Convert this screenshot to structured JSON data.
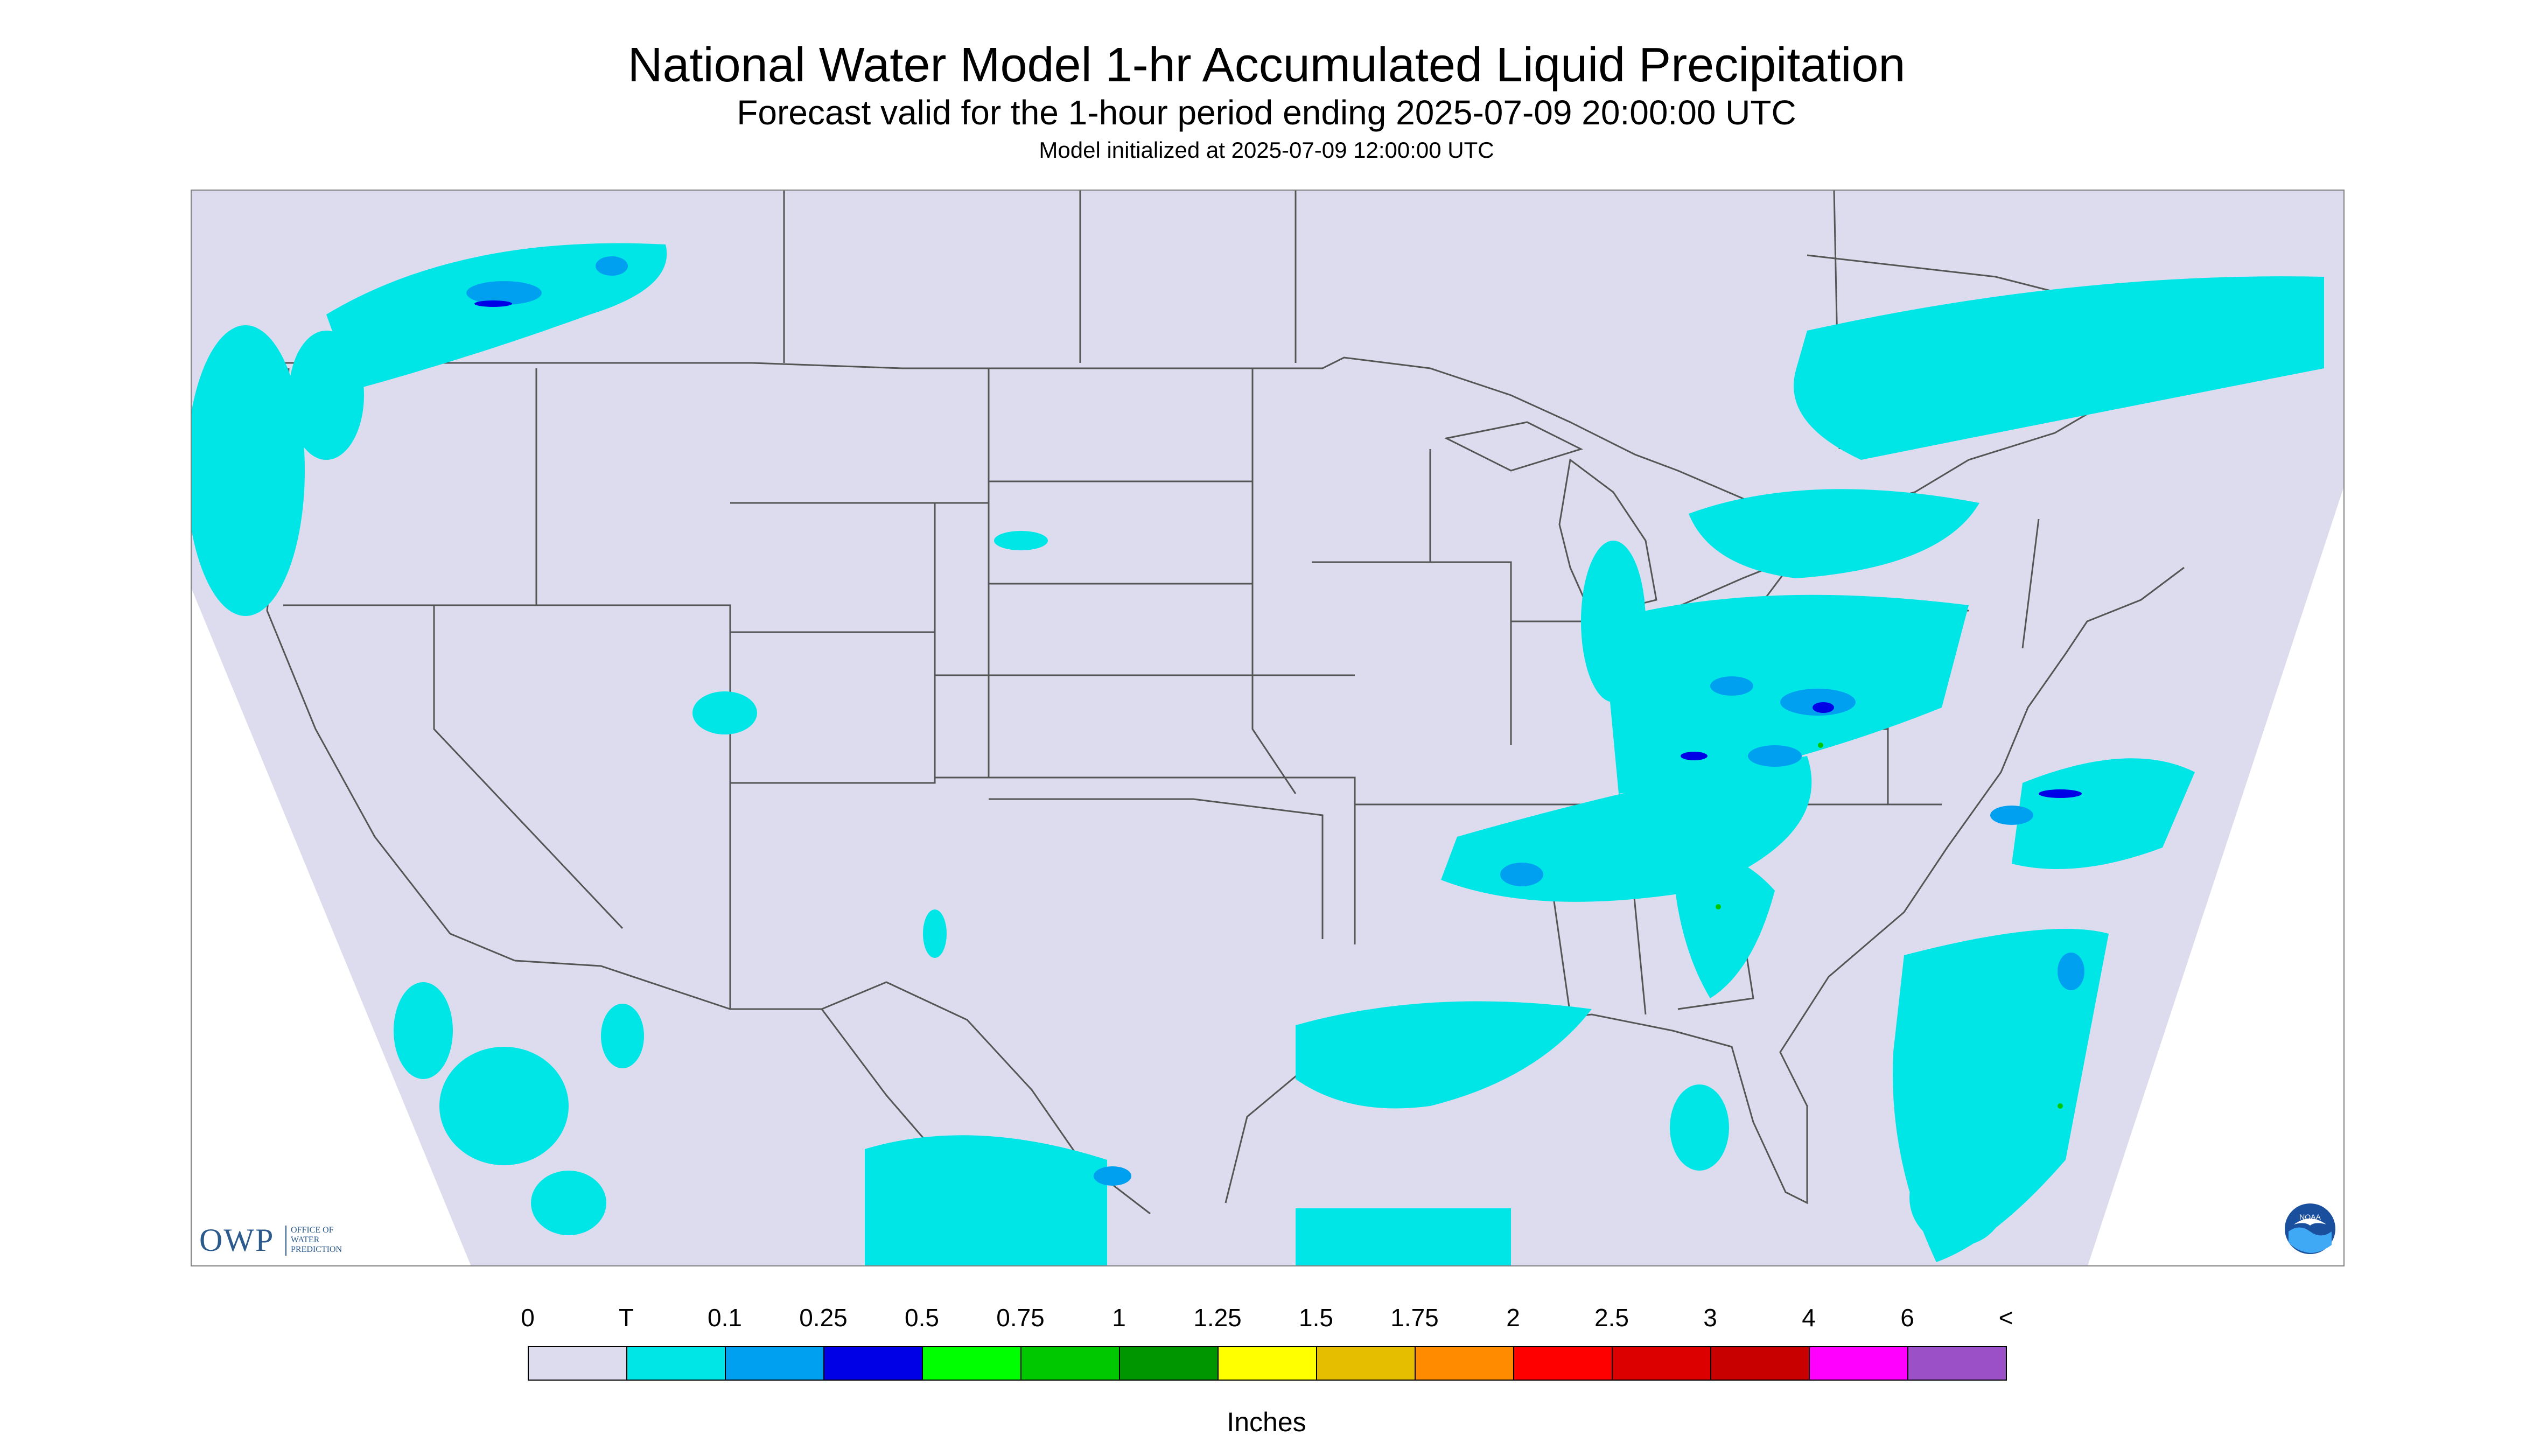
{
  "titles": {
    "main": "National Water Model 1-hr Accumulated Liquid Precipitation",
    "forecast": "Forecast valid for the 1-hour period ending 2025-07-09 20:00:00 UTC",
    "init": "Model initialized at 2025-07-09 12:00:00 UTC"
  },
  "logo_owp": {
    "main": "OWP",
    "sub": "OFFICE OF\nWATER\nPREDICTION"
  },
  "logo_noaa": {
    "icon": "noaa-emblem-icon",
    "text": "NOAA"
  },
  "legend": {
    "labels": [
      "0",
      "T",
      "0.1",
      "0.25",
      "0.5",
      "0.75",
      "1",
      "1.25",
      "1.5",
      "1.75",
      "2",
      "2.5",
      "3",
      "4",
      "6",
      "<"
    ],
    "colors": [
      "#dcdcee",
      "#00e6e6",
      "#00a0f0",
      "#0000e6",
      "#00ff00",
      "#00c800",
      "#009600",
      "#ffff00",
      "#e6be00",
      "#ff8c00",
      "#ff0000",
      "#dc0000",
      "#c80000",
      "#ff00ff",
      "#9b50c8"
    ],
    "units": "Inches"
  },
  "colors": {
    "no_precip": "#dcdcee",
    "trace": "#00e6e6",
    "light": "#00a0f0",
    "moderate": "#0000e6",
    "heavy": "#00ff00",
    "border": "#555555"
  }
}
